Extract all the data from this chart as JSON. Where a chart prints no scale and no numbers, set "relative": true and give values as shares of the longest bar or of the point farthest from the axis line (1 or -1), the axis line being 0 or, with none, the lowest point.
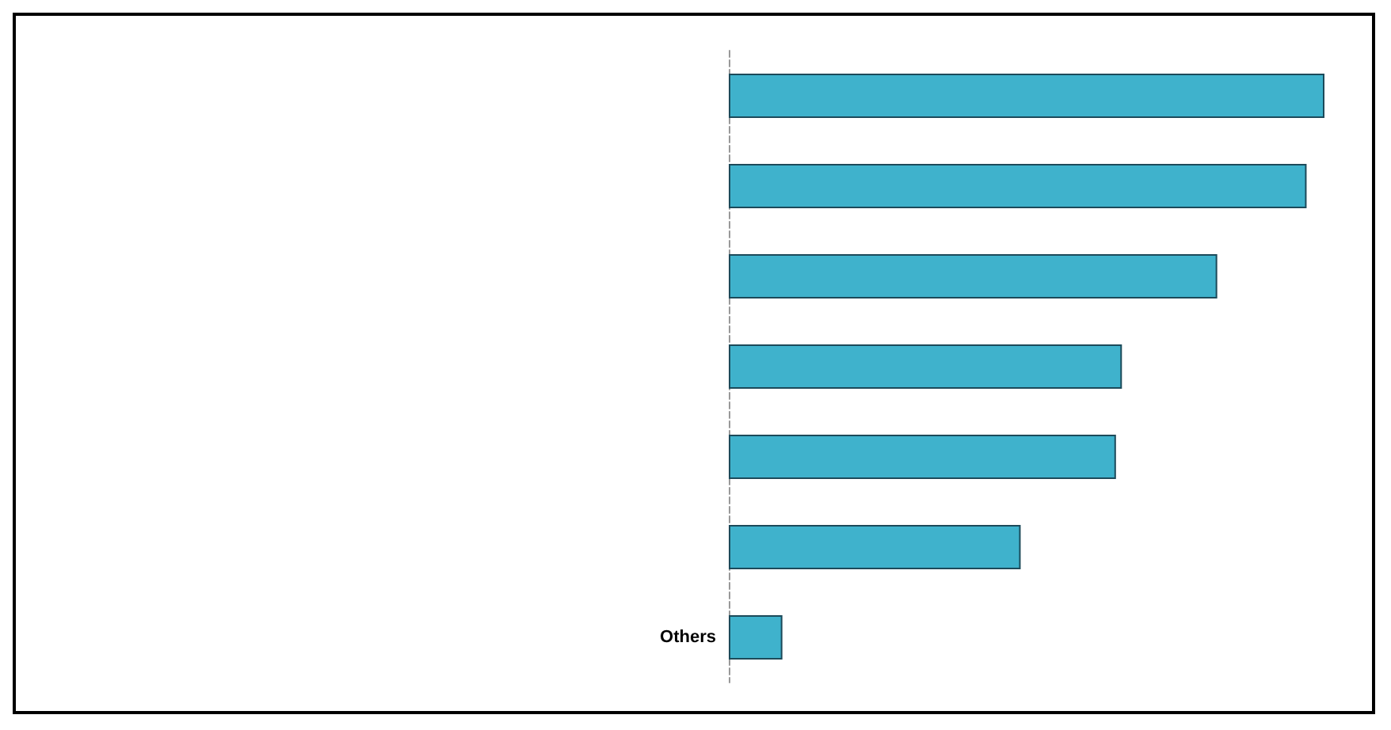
{
  "chart_data": {
    "type": "bar",
    "orientation": "horizontal",
    "relative": true,
    "categories": [
      null,
      null,
      null,
      null,
      null,
      null,
      "Others"
    ],
    "values": [
      1,
      0.97,
      0.82,
      0.66,
      0.65,
      0.49,
      0.09
    ],
    "color": "#3fb2cc"
  }
}
